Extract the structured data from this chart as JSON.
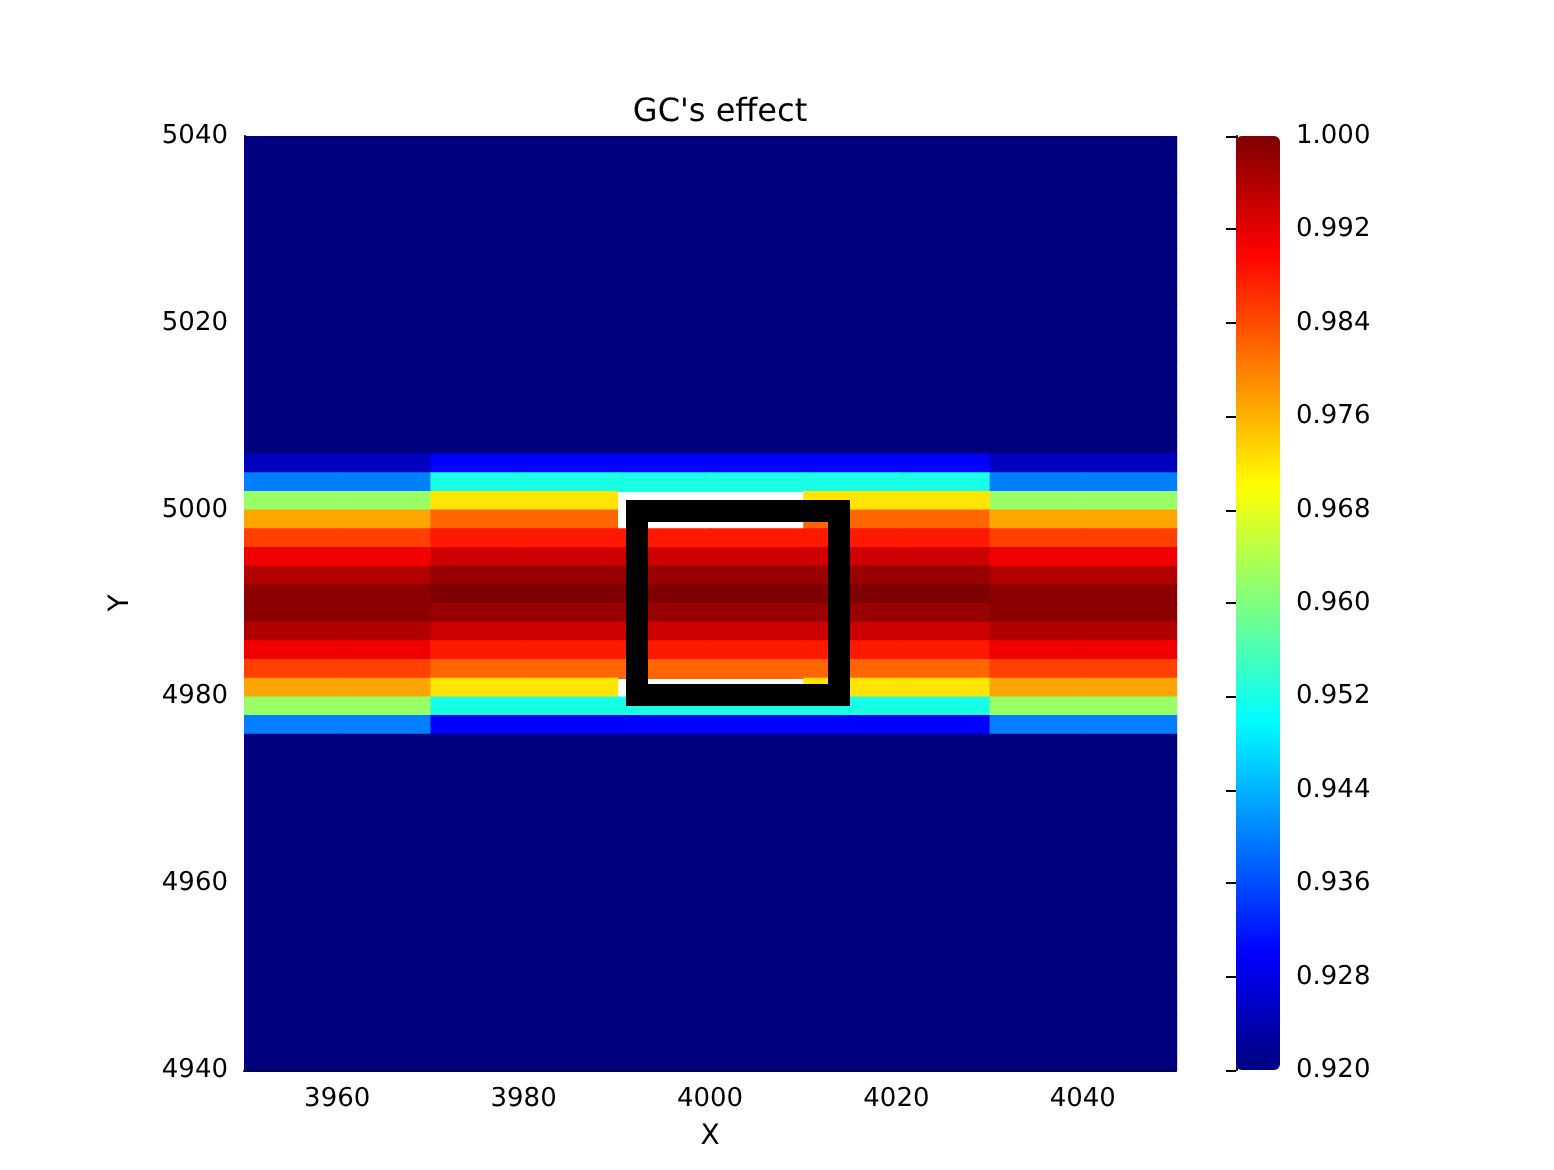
{
  "chart_data": {
    "type": "heatmap",
    "title": "GC's effect",
    "xlabel": "X",
    "ylabel": "Y",
    "xlim": [
      3950,
      4050
    ],
    "xticks": [
      3960,
      3980,
      4000,
      4020,
      4040
    ],
    "ylim": [
      4940,
      5040
    ],
    "yticks": [
      4940,
      4960,
      4980,
      5000,
      5020,
      5040
    ],
    "clim": [
      0.92,
      1.0
    ],
    "cticks": [
      {
        "value": 0.92,
        "label": "0.920"
      },
      {
        "value": 0.928,
        "label": "0.928"
      },
      {
        "value": 0.936,
        "label": "0.936"
      },
      {
        "value": 0.944,
        "label": "0.944"
      },
      {
        "value": 0.952,
        "label": "0.952"
      },
      {
        "value": 0.96,
        "label": "0.960"
      },
      {
        "value": 0.968,
        "label": "0.968"
      },
      {
        "value": 0.976,
        "label": "0.976"
      },
      {
        "value": 0.984,
        "label": "0.984"
      },
      {
        "value": 0.992,
        "label": "0.992"
      },
      {
        "value": 1.0,
        "label": "1.000"
      }
    ],
    "cells": [
      [
        0.92,
        0.92,
        0.92,
        0.92,
        0.92,
        0.92,
        0.92,
        0.92,
        0.92,
        0.92
      ],
      [
        0.92,
        0.92,
        0.92,
        0.92,
        0.92,
        0.92,
        0.92,
        0.92,
        0.92,
        0.92
      ],
      [
        0.92,
        0.92,
        0.92,
        0.92,
        0.92,
        0.92,
        0.92,
        0.92,
        0.92,
        0.92
      ],
      [
        0.92,
        0.92,
        0.92,
        0.92,
        0.92,
        0.92,
        0.92,
        0.92,
        0.92,
        0.92
      ],
      [
        0.92,
        0.92,
        0.92,
        0.92,
        0.92,
        0.92,
        0.92,
        0.92,
        0.92,
        0.92
      ],
      [
        0.92,
        0.92,
        0.92,
        0.92,
        0.92,
        0.92,
        0.92,
        0.92,
        0.92,
        0.92
      ],
      [
        0.92,
        0.92,
        0.92,
        0.92,
        0.92,
        0.92,
        0.92,
        0.92,
        0.92,
        0.92
      ],
      [
        0.92,
        0.92,
        0.92,
        0.92,
        0.92,
        0.92,
        0.92,
        0.92,
        0.92,
        0.92
      ],
      [
        0.92,
        0.92,
        0.92,
        0.92,
        0.92,
        0.92,
        0.92,
        0.92,
        0.92,
        0.92
      ],
      [
        0.92,
        0.92,
        0.92,
        0.92,
        0.92,
        0.92,
        0.92,
        0.92,
        0.92,
        0.92
      ],
      [
        0.92,
        0.92,
        0.92,
        0.92,
        0.92,
        0.92,
        0.92,
        0.92,
        0.92,
        0.92
      ],
      [
        0.92,
        0.92,
        0.92,
        0.92,
        0.92,
        0.92,
        0.92,
        0.92,
        0.92,
        0.92
      ],
      [
        0.92,
        0.92,
        0.92,
        0.92,
        0.92,
        0.92,
        0.92,
        0.92,
        0.92,
        0.92
      ],
      [
        0.92,
        0.92,
        0.92,
        0.92,
        0.92,
        0.92,
        0.92,
        0.92,
        0.92,
        0.92
      ],
      [
        0.92,
        0.92,
        0.92,
        0.92,
        0.92,
        0.92,
        0.92,
        0.92,
        0.92,
        0.92
      ],
      [
        0.92,
        0.92,
        0.92,
        0.92,
        0.92,
        0.92,
        0.92,
        0.92,
        0.92,
        0.92
      ],
      [
        0.92,
        0.92,
        0.92,
        0.92,
        0.92,
        0.92,
        0.92,
        0.92,
        0.92,
        0.92
      ],
      [
        0.925,
        0.925,
        0.93,
        0.93,
        0.93,
        0.93,
        0.93,
        0.93,
        0.925,
        0.925
      ],
      [
        0.94,
        0.94,
        0.952,
        0.952,
        0.952,
        0.952,
        0.952,
        0.952,
        0.94,
        0.94
      ],
      [
        0.962,
        0.962,
        0.972,
        0.972,
        null,
        null,
        0.972,
        0.972,
        0.962,
        0.962
      ],
      [
        0.977,
        0.977,
        0.982,
        0.982,
        null,
        null,
        0.982,
        0.982,
        0.977,
        0.977
      ],
      [
        0.985,
        0.985,
        0.988,
        0.988,
        0.988,
        0.988,
        0.988,
        0.988,
        0.985,
        0.985
      ],
      [
        0.991,
        0.991,
        0.994,
        0.994,
        0.994,
        0.994,
        0.994,
        0.994,
        0.991,
        0.991
      ],
      [
        0.996,
        0.996,
        0.998,
        0.998,
        0.998,
        0.998,
        0.998,
        0.998,
        0.996,
        0.996
      ],
      [
        0.999,
        0.999,
        1.0,
        1.0,
        1.0,
        1.0,
        1.0,
        1.0,
        0.999,
        0.999
      ],
      [
        0.999,
        0.999,
        0.998,
        0.998,
        0.998,
        0.998,
        0.998,
        0.998,
        0.999,
        0.999
      ],
      [
        0.996,
        0.996,
        0.994,
        0.994,
        0.994,
        0.994,
        0.994,
        0.994,
        0.996,
        0.996
      ],
      [
        0.991,
        0.991,
        0.988,
        0.988,
        0.988,
        0.988,
        0.988,
        0.988,
        0.991,
        0.991
      ],
      [
        0.985,
        0.985,
        0.982,
        0.982,
        0.982,
        0.982,
        0.982,
        0.982,
        0.985,
        0.985
      ],
      [
        0.977,
        0.977,
        0.972,
        0.972,
        null,
        null,
        0.972,
        0.972,
        0.977,
        0.977
      ],
      [
        0.962,
        0.962,
        0.952,
        0.952,
        0.952,
        0.952,
        0.952,
        0.952,
        0.962,
        0.962
      ],
      [
        0.94,
        0.94,
        0.93,
        0.93,
        0.93,
        0.93,
        0.93,
        0.93,
        0.94,
        0.94
      ],
      [
        0.92,
        0.92,
        0.92,
        0.92,
        0.92,
        0.92,
        0.92,
        0.92,
        0.92,
        0.92
      ],
      [
        0.92,
        0.92,
        0.92,
        0.92,
        0.92,
        0.92,
        0.92,
        0.92,
        0.92,
        0.92
      ],
      [
        0.92,
        0.92,
        0.92,
        0.92,
        0.92,
        0.92,
        0.92,
        0.92,
        0.92,
        0.92
      ],
      [
        0.92,
        0.92,
        0.92,
        0.92,
        0.92,
        0.92,
        0.92,
        0.92,
        0.92,
        0.92
      ],
      [
        0.92,
        0.92,
        0.92,
        0.92,
        0.92,
        0.92,
        0.92,
        0.92,
        0.92,
        0.92
      ],
      [
        0.92,
        0.92,
        0.92,
        0.92,
        0.92,
        0.92,
        0.92,
        0.92,
        0.92,
        0.92
      ],
      [
        0.92,
        0.92,
        0.92,
        0.92,
        0.92,
        0.92,
        0.92,
        0.92,
        0.92,
        0.92
      ],
      [
        0.92,
        0.92,
        0.92,
        0.92,
        0.92,
        0.92,
        0.92,
        0.92,
        0.92,
        0.92
      ],
      [
        0.92,
        0.92,
        0.92,
        0.92,
        0.92,
        0.92,
        0.92,
        0.92,
        0.92,
        0.92
      ],
      [
        0.92,
        0.92,
        0.92,
        0.92,
        0.92,
        0.92,
        0.92,
        0.92,
        0.92,
        0.92
      ],
      [
        0.92,
        0.92,
        0.92,
        0.92,
        0.92,
        0.92,
        0.92,
        0.92,
        0.92,
        0.92
      ],
      [
        0.92,
        0.92,
        0.92,
        0.92,
        0.92,
        0.92,
        0.92,
        0.92,
        0.92,
        0.92
      ],
      [
        0.92,
        0.92,
        0.92,
        0.92,
        0.92,
        0.92,
        0.92,
        0.92,
        0.92,
        0.92
      ],
      [
        0.92,
        0.92,
        0.92,
        0.92,
        0.92,
        0.92,
        0.92,
        0.92,
        0.92,
        0.92
      ],
      [
        0.92,
        0.92,
        0.92,
        0.92,
        0.92,
        0.92,
        0.92,
        0.92,
        0.92,
        0.92
      ],
      [
        0.92,
        0.92,
        0.92,
        0.92,
        0.92,
        0.92,
        0.92,
        0.92,
        0.92,
        0.92
      ],
      [
        0.92,
        0.92,
        0.92,
        0.92,
        0.92,
        0.92,
        0.92,
        0.92,
        0.92,
        0.92
      ],
      [
        0.92,
        0.92,
        0.92,
        0.92,
        0.92,
        0.92,
        0.92,
        0.92,
        0.92,
        0.92
      ]
    ]
  }
}
